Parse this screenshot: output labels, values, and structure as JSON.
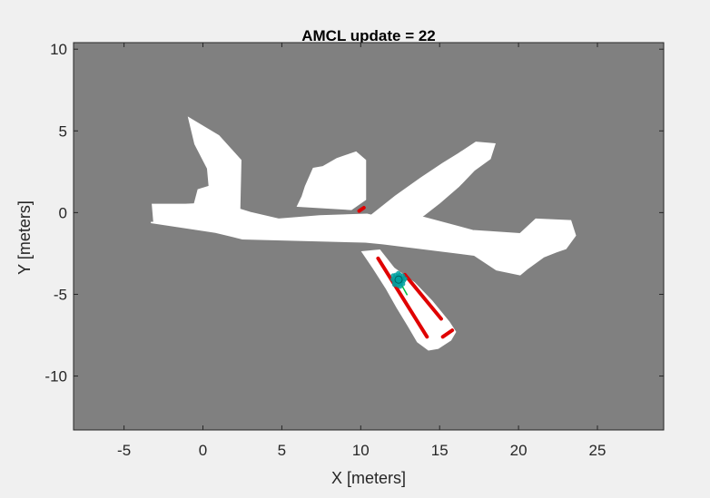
{
  "chart_data": {
    "type": "map",
    "title": "AMCL update = 22",
    "xlabel": "X [meters]",
    "ylabel": "Y [meters]",
    "xlim": [
      -8.2,
      29.2
    ],
    "ylim": [
      -13.3,
      10.4
    ],
    "xticks": [
      -5,
      0,
      5,
      10,
      15,
      20,
      25
    ],
    "yticks": [
      -10,
      -5,
      0,
      5,
      10
    ],
    "grid": false,
    "colors": {
      "unknown": "#808080",
      "free": "#ffffff",
      "scan_hits": "#e00000",
      "particles": "#00a0a0",
      "robot_heading": "#00c040",
      "axis": "#262626",
      "figure_bg": "#f0f0f0"
    },
    "map_regions": {
      "free_space_polygons": [
        [
          [
            -3.3,
            -0.6
          ],
          [
            0.8,
            -1.2
          ],
          [
            2.5,
            -1.6
          ],
          [
            10.3,
            -1.8
          ],
          [
            11.4,
            -1.9
          ],
          [
            17.2,
            -2.6
          ],
          [
            18.6,
            -3.5
          ],
          [
            20.1,
            -3.8
          ],
          [
            20.6,
            -3.4
          ],
          [
            21.6,
            -2.7
          ],
          [
            22.4,
            -2.4
          ],
          [
            23.0,
            -2.2
          ],
          [
            23.6,
            -1.4
          ],
          [
            23.3,
            -0.5
          ],
          [
            21.1,
            -0.4
          ],
          [
            20.1,
            -1.3
          ],
          [
            17.1,
            -1.1
          ],
          [
            14.0,
            -0.3
          ],
          [
            11.3,
            -0.3
          ],
          [
            10.4,
            -0.1
          ],
          [
            7.4,
            -0.2
          ],
          [
            4.8,
            -0.4
          ],
          [
            3.0,
            0.0
          ],
          [
            1.0,
            0.6
          ],
          [
            -1.1,
            0.5
          ],
          [
            -3.2,
            0.5
          ],
          [
            -3.1,
            -0.6
          ]
        ],
        [
          [
            10.0,
            -1.0
          ],
          [
            10.5,
            -0.3
          ],
          [
            12.2,
            1.0
          ],
          [
            13.8,
            2.1
          ],
          [
            15.2,
            3.0
          ],
          [
            16.2,
            3.6
          ],
          [
            17.3,
            4.3
          ],
          [
            18.5,
            4.2
          ],
          [
            18.2,
            3.3
          ],
          [
            17.2,
            2.6
          ],
          [
            16.2,
            1.6
          ],
          [
            15.0,
            0.6
          ],
          [
            13.8,
            -0.3
          ],
          [
            12.7,
            -1.0
          ],
          [
            11.9,
            -1.4
          ],
          [
            11.0,
            -1.5
          ]
        ],
        [
          [
            10.1,
            -2.4
          ],
          [
            11.2,
            -2.3
          ],
          [
            12.1,
            -3.4
          ],
          [
            13.4,
            -4.3
          ],
          [
            14.5,
            -5.4
          ],
          [
            15.6,
            -6.7
          ],
          [
            16.0,
            -7.3
          ],
          [
            15.7,
            -7.8
          ],
          [
            14.9,
            -8.3
          ],
          [
            14.3,
            -8.4
          ],
          [
            13.6,
            -7.9
          ],
          [
            13.0,
            -6.9
          ],
          [
            12.3,
            -5.8
          ],
          [
            11.6,
            -4.6
          ],
          [
            10.8,
            -3.4
          ]
        ],
        [
          [
            1.1,
            -1.0
          ],
          [
            2.3,
            -0.9
          ],
          [
            2.4,
            3.2
          ],
          [
            1.0,
            4.7
          ],
          [
            -0.9,
            5.8
          ],
          [
            -0.5,
            4.2
          ],
          [
            0.3,
            2.7
          ],
          [
            0.4,
            1.6
          ],
          [
            -0.3,
            1.4
          ],
          [
            -0.6,
            0.3
          ],
          [
            0.0,
            -0.4
          ]
        ],
        [
          [
            6.0,
            0.4
          ],
          [
            9.4,
            0.2
          ],
          [
            10.3,
            0.8
          ],
          [
            10.3,
            3.2
          ],
          [
            9.7,
            3.7
          ],
          [
            8.5,
            3.3
          ],
          [
            7.6,
            2.8
          ],
          [
            7.0,
            2.7
          ],
          [
            6.5,
            1.6
          ],
          [
            6.3,
            1.0
          ]
        ]
      ],
      "scan_hit_segments": [
        [
          [
            11.1,
            -2.8
          ],
          [
            14.2,
            -7.6
          ]
        ],
        [
          [
            12.8,
            -3.8
          ],
          [
            15.1,
            -6.5
          ]
        ],
        [
          [
            15.2,
            -7.6
          ],
          [
            15.8,
            -7.2
          ]
        ],
        [
          [
            9.9,
            0.1
          ],
          [
            10.2,
            0.3
          ]
        ]
      ]
    },
    "robot": {
      "x": 12.4,
      "y": -4.1,
      "heading_deg": -60,
      "particle_count": 24
    }
  }
}
